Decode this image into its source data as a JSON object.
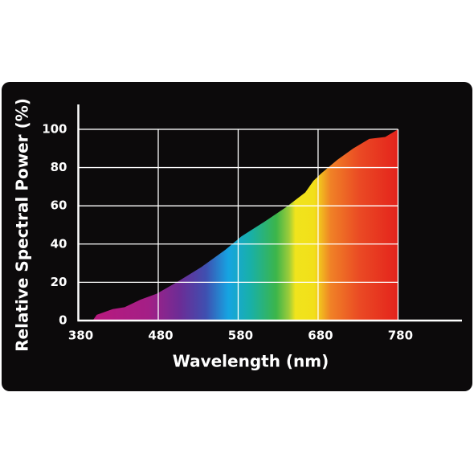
{
  "chart_data": {
    "type": "area",
    "x_label": "Wavelength (nm)",
    "y_label": "Relative Spectral Power (%)",
    "x": [
      398,
      403,
      423,
      438,
      458,
      478,
      503,
      534,
      564,
      584,
      614,
      639,
      664,
      674,
      684,
      704,
      724,
      744,
      764,
      780
    ],
    "values": [
      0,
      3,
      6,
      7,
      11,
      14,
      20,
      28,
      37,
      44,
      52,
      59,
      67,
      73,
      77,
      84,
      90,
      95,
      96,
      100
    ],
    "xlim": [
      380,
      860
    ],
    "ylim": [
      0,
      113
    ],
    "xticks": [
      380,
      480,
      580,
      680,
      780
    ],
    "yticks": [
      0,
      20,
      40,
      60,
      80,
      100
    ],
    "grid": true
  }
}
